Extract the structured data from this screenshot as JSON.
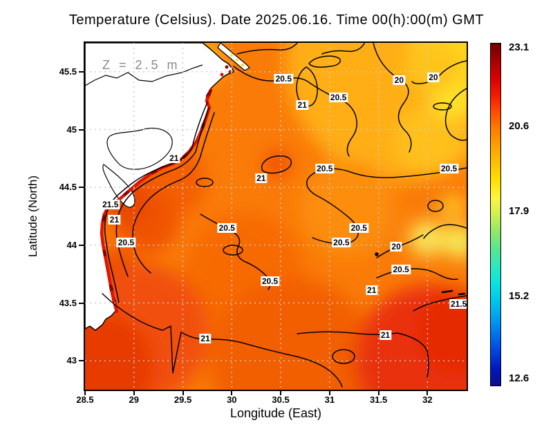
{
  "title": "Temperature (Celsius). Date 2025.06.16. Time 00(h):00(m) GMT",
  "annotation": "Z = 2.5 m",
  "axes": {
    "x": {
      "label": "Longitude (East)",
      "ticks": [
        28.5,
        29,
        29.5,
        30,
        30.5,
        31,
        31.5,
        32
      ],
      "range": [
        28.5,
        32.4
      ]
    },
    "y": {
      "label": "Latitude (North)",
      "ticks": [
        43,
        43.5,
        44,
        44.5,
        45,
        45.5
      ],
      "range": [
        42.75,
        45.75
      ]
    }
  },
  "colorbar": {
    "tick_labels": [
      "23.1",
      "20.6",
      "17.9",
      "15.2",
      "12.6"
    ],
    "tick_values": [
      23.1,
      20.6,
      17.9,
      15.2,
      12.6
    ],
    "value_min": 12.4,
    "value_max": 23.25,
    "gradient": [
      "#700000",
      "#a80000",
      "#d80000",
      "#f81800",
      "#ff4c00",
      "#ff7c00",
      "#ffa000",
      "#ffc000",
      "#ffe000",
      "#fff440",
      "#d0f050",
      "#90e868",
      "#58e68e",
      "#2ee8c0",
      "#0ae4e0",
      "#00c8ea",
      "#00a2f0",
      "#0072ee",
      "#0044de",
      "#0018c0",
      "#0d0d8e"
    ]
  },
  "palette": {
    "sea_base": "#fa7b08",
    "land": "#ffffff",
    "coastline": "#000000",
    "coast_hot_strip": "#df1500",
    "coast_hotspot": "#8e0000",
    "contour": "#000000",
    "grid": "#c9c9c9",
    "annotation_gray": "#8a8a8a"
  },
  "chart_data": {
    "type": "heatmap",
    "title": "Temperature (Celsius). Date 2025.06.16. Time 00(h):00(m) GMT",
    "xlabel": "Longitude (East)",
    "ylabel": "Latitude (North)",
    "xlim": [
      28.5,
      32.4
    ],
    "ylim": [
      42.75,
      45.75
    ],
    "grid": true,
    "legend_position": "colorbar-right",
    "colorbar_ticks": [
      23.1,
      20.6,
      17.9,
      15.2,
      12.6
    ],
    "colorbar_range": [
      12.4,
      23.25
    ],
    "depth_annotation": "Z = 2.5 m",
    "contour_levels": [
      20,
      20.5,
      21,
      21.5
    ],
    "contour_labels": [
      {
        "value": "20.5",
        "lon": 30.53,
        "lat": 45.44
      },
      {
        "value": "21",
        "lon": 30.72,
        "lat": 45.21
      },
      {
        "value": "20.5",
        "lon": 31.09,
        "lat": 45.28
      },
      {
        "value": "20",
        "lon": 31.71,
        "lat": 45.43
      },
      {
        "value": "20",
        "lon": 32.06,
        "lat": 45.45
      },
      {
        "value": "20.5",
        "lon": 32.22,
        "lat": 44.66
      },
      {
        "value": "21",
        "lon": 29.41,
        "lat": 44.75
      },
      {
        "value": "20.5",
        "lon": 30.95,
        "lat": 44.66
      },
      {
        "value": "21",
        "lon": 30.3,
        "lat": 44.58
      },
      {
        "value": "21.5",
        "lon": 28.76,
        "lat": 44.35
      },
      {
        "value": "21",
        "lon": 28.8,
        "lat": 44.22
      },
      {
        "value": "20.5",
        "lon": 28.92,
        "lat": 44.02
      },
      {
        "value": "20.5",
        "lon": 29.95,
        "lat": 44.15
      },
      {
        "value": "20.5",
        "lon": 31.3,
        "lat": 44.15
      },
      {
        "value": "20.5",
        "lon": 31.12,
        "lat": 44.02
      },
      {
        "value": "20",
        "lon": 31.68,
        "lat": 43.99
      },
      {
        "value": "20.5",
        "lon": 31.73,
        "lat": 43.79
      },
      {
        "value": "20.5",
        "lon": 30.39,
        "lat": 43.69
      },
      {
        "value": "21",
        "lon": 31.43,
        "lat": 43.61
      },
      {
        "value": "21.5",
        "lon": 32.32,
        "lat": 43.49
      },
      {
        "value": "21",
        "lon": 29.73,
        "lat": 43.19
      },
      {
        "value": "21",
        "lon": 31.57,
        "lat": 43.22
      }
    ],
    "field_features": [
      {
        "region": "narrow strip along western coast (Romanian shelf)",
        "approx_temp_c": "21.5-22.8",
        "color": "red / dark red"
      },
      {
        "region": "open sea, central and southwestern area",
        "approx_temp_c": "20.5-21.0",
        "color": "orange"
      },
      {
        "region": "southwest and southeast corners",
        "approx_temp_c": "21.0-21.7",
        "color": "red-orange"
      },
      {
        "region": "northeast and east (yellow patches)",
        "approx_temp_c": "19.5-20.0",
        "color": "yellow-orange"
      },
      {
        "region": "land (Danube delta, coast) shown white with black shoreline and lagoon outlines",
        "approx_temp_c": null,
        "color": "white"
      }
    ]
  }
}
